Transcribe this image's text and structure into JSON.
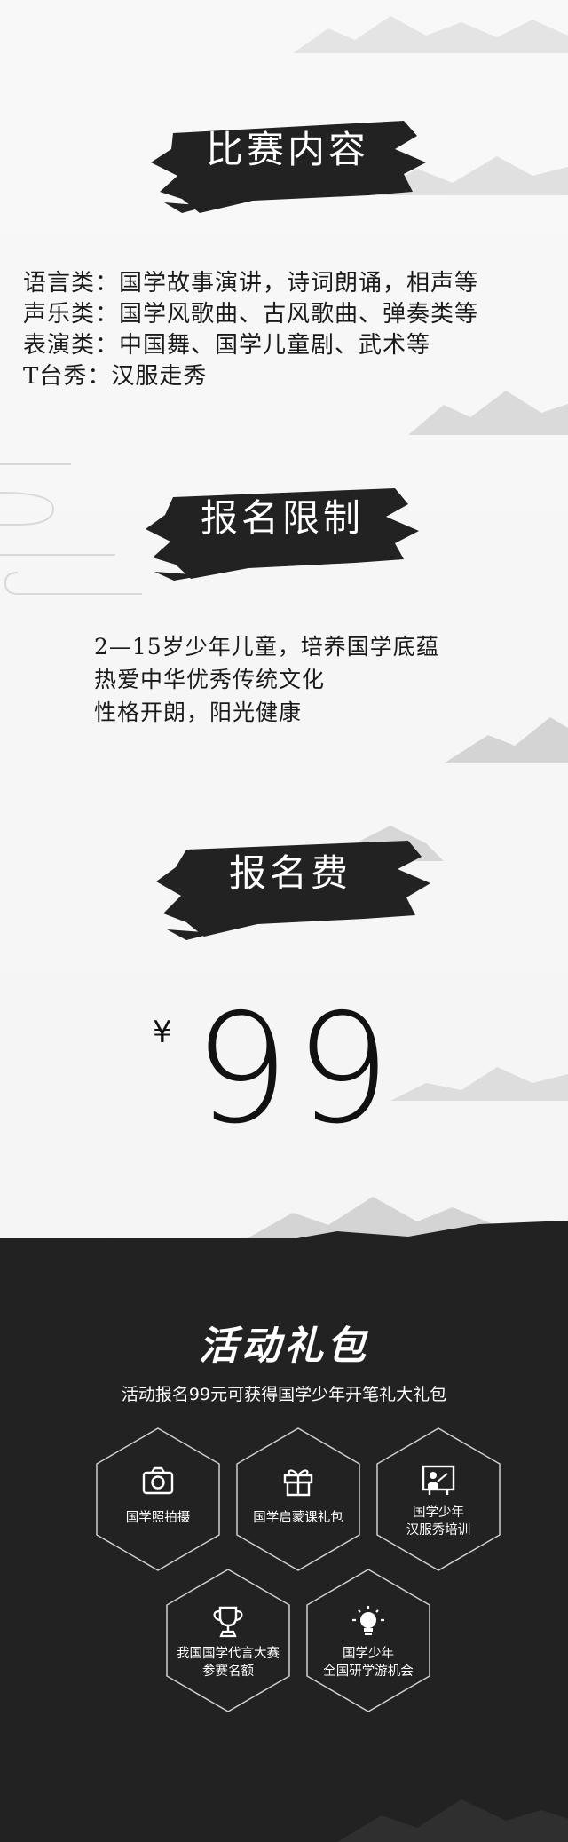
{
  "sections": {
    "content": {
      "title": "比赛内容",
      "lines": [
        "语言类：国学故事演讲，诗词朗诵，相声等",
        "声乐类：国学风歌曲、古风歌曲、弹奏类等",
        "表演类：中国舞、国学儿童剧、武术等",
        "T台秀：汉服走秀"
      ]
    },
    "limits": {
      "title": "报名限制",
      "lines": [
        "2—15岁少年儿童，培养国学底蕴",
        "热爱中华优秀传统文化",
        "性格开朗，阳光健康"
      ]
    },
    "fee": {
      "title": "报名费",
      "currency": "¥",
      "amount": "99"
    }
  },
  "gift": {
    "title": "活动礼包",
    "subtitle": "活动报名99元可获得国学少年开笔礼大礼包",
    "items": [
      {
        "icon": "camera-icon",
        "line1": "国学照拍摄",
        "line2": ""
      },
      {
        "icon": "gift-box-icon",
        "line1": "国学启蒙课礼包",
        "line2": ""
      },
      {
        "icon": "teacher-board-icon",
        "line1": "国学少年",
        "line2": "汉服秀培训"
      },
      {
        "icon": "trophy-icon",
        "line1": "我国国学代言大赛",
        "line2": "参赛名额"
      },
      {
        "icon": "lightbulb-icon",
        "line1": "国学少年",
        "line2": "全国研学游机会"
      }
    ]
  },
  "colors": {
    "ink": "#1a1a1a",
    "dark_bg": "#222222",
    "text_light": "#ffffff"
  }
}
